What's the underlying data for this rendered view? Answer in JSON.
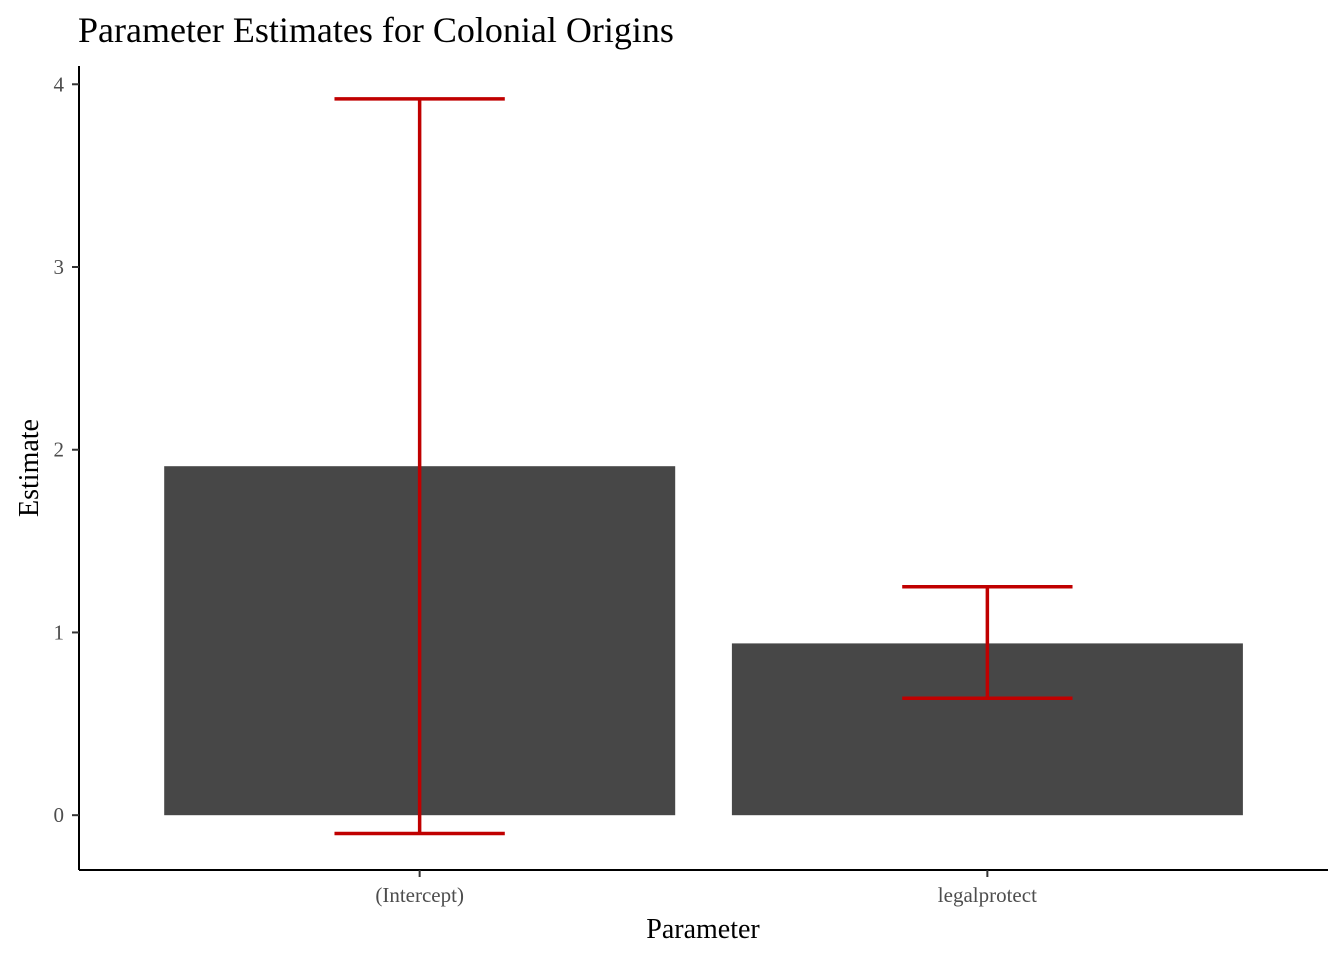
{
  "chart_data": {
    "type": "bar",
    "title": "Parameter Estimates for Colonial Origins",
    "xlabel": "Parameter",
    "ylabel": "Estimate",
    "categories": [
      "(Intercept)",
      "legalprotect"
    ],
    "values": [
      1.91,
      0.94
    ],
    "error_bars": [
      {
        "lower": -0.1,
        "upper": 3.92
      },
      {
        "lower": 0.64,
        "upper": 1.25
      }
    ],
    "ylim": [
      -0.3,
      4.1
    ],
    "yticks": [
      0,
      1,
      2,
      3,
      4
    ],
    "grid": false,
    "legend": "none",
    "colors": {
      "bar": "#474747",
      "error_bar": "#c00000"
    }
  }
}
